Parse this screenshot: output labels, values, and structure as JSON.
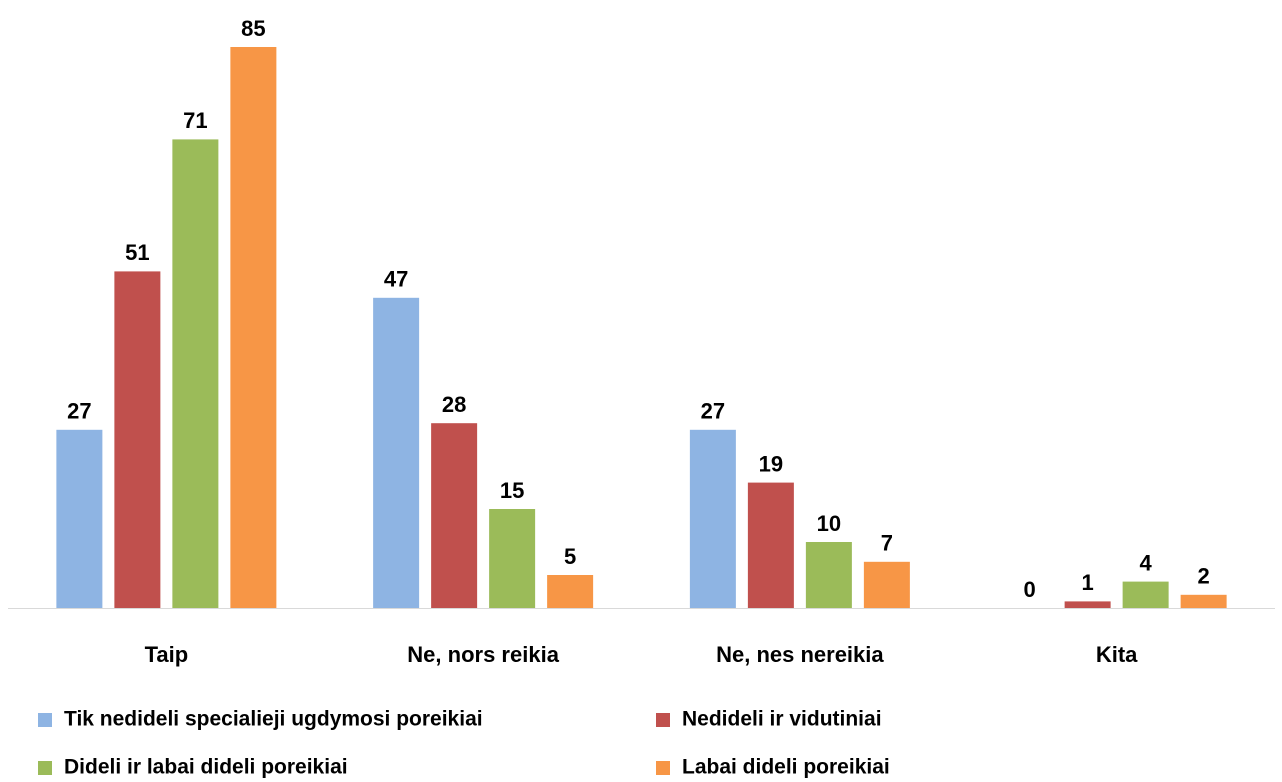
{
  "chart_data": {
    "type": "bar",
    "categories": [
      "Taip",
      "Ne, nors reikia",
      "Ne, nes nereikia",
      "Kita"
    ],
    "series": [
      {
        "name": "Tik nedideli specialieji ugdymosi poreikiai",
        "color": "#8EB4E3",
        "values": [
          27,
          47,
          27,
          0
        ]
      },
      {
        "name": "Nedideli ir vidutiniai",
        "color": "#C0504D",
        "values": [
          51,
          28,
          19,
          1
        ]
      },
      {
        "name": "Dideli ir labai dideli poreikiai",
        "color": "#9BBB59",
        "values": [
          71,
          15,
          10,
          4
        ]
      },
      {
        "name": "Labai dideli poreikiai",
        "color": "#F79646",
        "values": [
          85,
          5,
          7,
          2
        ]
      }
    ]
  }
}
